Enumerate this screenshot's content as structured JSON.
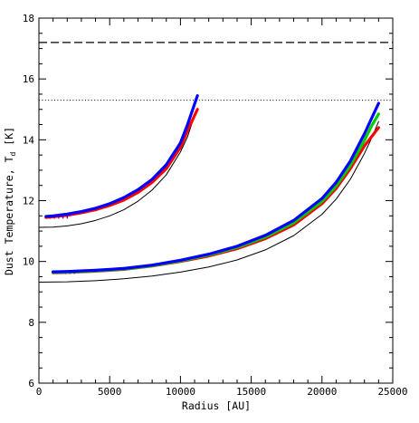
{
  "chart_data": {
    "type": "line",
    "xlabel": "Radius [AU]",
    "ylabel_main": "Dust Temperature, T",
    "ylabel_subscript": "d",
    "ylabel_unit": " [K]",
    "xlim": [
      0,
      25000
    ],
    "ylim": [
      6,
      18
    ],
    "xticks": [
      0,
      5000,
      10000,
      15000,
      20000,
      25000
    ],
    "yticks": [
      6,
      8,
      10,
      12,
      14,
      16,
      18
    ],
    "x_minor_step": 1000,
    "y_minor_step": 0.5,
    "grid": false,
    "reference_lines": [
      {
        "style": "dashed",
        "y": 17.2,
        "color": "#000000"
      },
      {
        "style": "dotted",
        "y": 15.3,
        "color": "#000000"
      }
    ],
    "series": [
      {
        "group": "inner",
        "color": "#000000",
        "style": "solid",
        "x": [
          0,
          1000,
          2000,
          3000,
          4000,
          5000,
          6000,
          7000,
          8000,
          9000,
          10000,
          10500,
          11000
        ],
        "y": [
          11.12,
          11.13,
          11.17,
          11.24,
          11.35,
          11.5,
          11.7,
          11.98,
          12.35,
          12.85,
          13.6,
          14.1,
          14.8
        ]
      },
      {
        "group": "inner",
        "color": "#ff0000",
        "style": "thick",
        "x": [
          500,
          1000,
          2000,
          3000,
          4000,
          5000,
          6000,
          7000,
          8000,
          9000,
          10000,
          10500,
          11200
        ],
        "y": [
          11.45,
          11.47,
          11.52,
          11.6,
          11.7,
          11.84,
          12.02,
          12.27,
          12.6,
          13.05,
          13.75,
          14.3,
          15.0
        ]
      },
      {
        "group": "inner",
        "color": "#0000ff",
        "style": "thick",
        "x": [
          500,
          1000,
          2000,
          3000,
          4000,
          5000,
          6000,
          7000,
          8000,
          9000,
          10000,
          10500,
          11200
        ],
        "y": [
          11.48,
          11.5,
          11.56,
          11.64,
          11.75,
          11.9,
          12.1,
          12.36,
          12.7,
          13.18,
          13.9,
          14.5,
          15.45
        ]
      },
      {
        "group": "outer",
        "color": "#000000",
        "style": "solid",
        "x": [
          0,
          2000,
          4000,
          6000,
          8000,
          10000,
          12000,
          14000,
          16000,
          18000,
          20000,
          21000,
          22000,
          23000,
          23500,
          24000
        ],
        "y": [
          9.32,
          9.33,
          9.37,
          9.43,
          9.52,
          9.65,
          9.82,
          10.05,
          10.38,
          10.85,
          11.55,
          12.05,
          12.7,
          13.55,
          14.05,
          14.6
        ]
      },
      {
        "group": "outer",
        "color": "#ff0000",
        "style": "thick",
        "x": [
          1000,
          2000,
          4000,
          6000,
          8000,
          10000,
          12000,
          14000,
          16000,
          18000,
          20000,
          21000,
          22000,
          23000,
          23500,
          24000
        ],
        "y": [
          9.63,
          9.64,
          9.68,
          9.74,
          9.85,
          10.0,
          10.18,
          10.42,
          10.75,
          11.2,
          11.9,
          12.4,
          13.05,
          13.8,
          14.1,
          14.4
        ]
      },
      {
        "group": "outer",
        "color": "#00cc00",
        "style": "thick",
        "x": [
          1000,
          2000,
          4000,
          6000,
          8000,
          10000,
          12000,
          14000,
          16000,
          18000,
          20000,
          21000,
          22000,
          23000,
          23500,
          24000
        ],
        "y": [
          9.64,
          9.65,
          9.69,
          9.75,
          9.86,
          10.02,
          10.21,
          10.46,
          10.8,
          11.27,
          11.97,
          12.48,
          13.15,
          13.98,
          14.45,
          14.85
        ]
      },
      {
        "group": "outer",
        "color": "#0000ff",
        "style": "thick",
        "x": [
          1000,
          2000,
          4000,
          6000,
          8000,
          10000,
          12000,
          14000,
          16000,
          18000,
          20000,
          21000,
          22000,
          23000,
          23500,
          24000
        ],
        "y": [
          9.66,
          9.67,
          9.71,
          9.77,
          9.88,
          10.04,
          10.24,
          10.5,
          10.86,
          11.35,
          12.07,
          12.6,
          13.3,
          14.2,
          14.7,
          15.2
        ]
      }
    ]
  }
}
